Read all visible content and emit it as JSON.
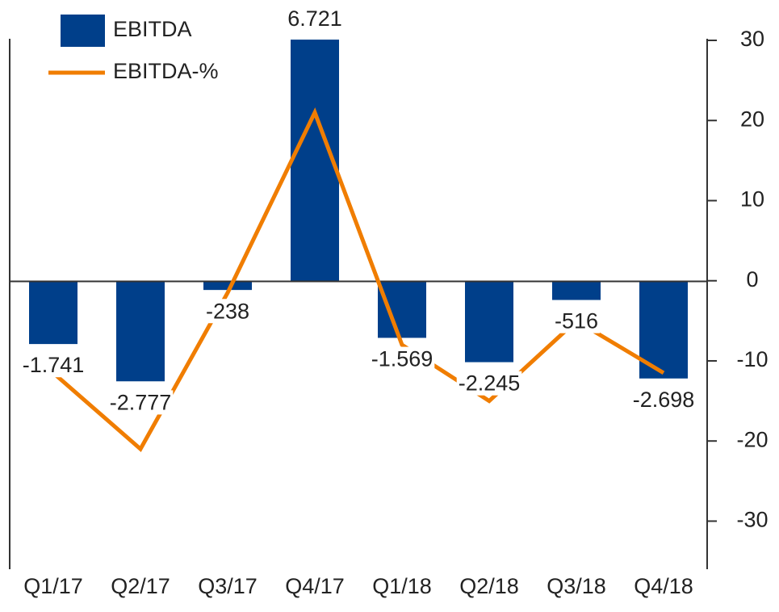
{
  "chart_data": {
    "type": "bar",
    "categories": [
      "Q1/17",
      "Q2/17",
      "Q3/17",
      "Q4/17",
      "Q1/18",
      "Q2/18",
      "Q3/18",
      "Q4/18"
    ],
    "series": [
      {
        "name": "EBITDA",
        "color": "#003f8a",
        "values": [
          -1741,
          -2777,
          -238,
          6721,
          -1569,
          -2245,
          -516,
          -2698
        ],
        "value_labels": [
          "-1.741",
          "-2.777",
          "-238",
          "6.721",
          "-1.569",
          "-2.245",
          "-516",
          "-2.698"
        ]
      },
      {
        "name": "EBITDA-%",
        "color": "#f07d00",
        "type": "line",
        "axis": "y2",
        "values": [
          -11.5,
          -21,
          -1.5,
          21,
          -8,
          -15,
          -5,
          -11.5
        ]
      }
    ],
    "ylim": [
      -8000,
      6700
    ],
    "y2lim": [
      -36,
      30
    ],
    "y2ticks": [
      -30,
      -20,
      -10,
      0,
      10,
      20,
      30
    ],
    "grid": false,
    "legend": "top-left"
  }
}
